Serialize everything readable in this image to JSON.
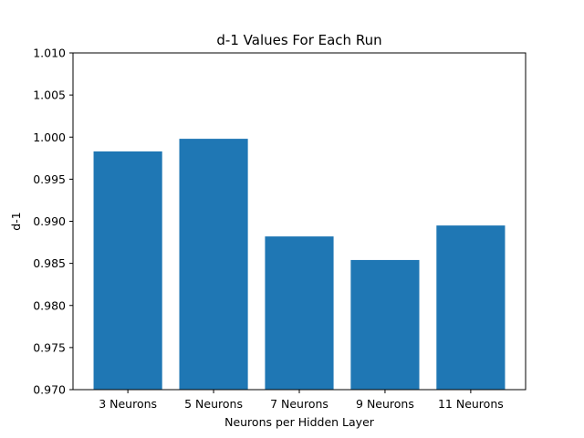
{
  "chart_data": {
    "type": "bar",
    "title": "d-1 Values For Each Run",
    "xlabel": "Neurons per Hidden Layer",
    "ylabel": "d-1",
    "categories": [
      "3 Neurons",
      "5 Neurons",
      "7 Neurons",
      "9 Neurons",
      "11 Neurons"
    ],
    "values": [
      0.9983,
      0.9998,
      0.9882,
      0.9854,
      0.9895
    ],
    "ylim": [
      0.97,
      1.01
    ],
    "yticks": [
      0.97,
      0.975,
      0.98,
      0.985,
      0.99,
      0.995,
      1.0,
      1.005,
      1.01
    ],
    "ytick_labels": [
      "0.970",
      "0.975",
      "0.980",
      "0.985",
      "0.990",
      "0.995",
      "1.000",
      "1.005",
      "1.010"
    ],
    "bar_color": "#1f77b4",
    "grid": false,
    "legend": "none"
  }
}
